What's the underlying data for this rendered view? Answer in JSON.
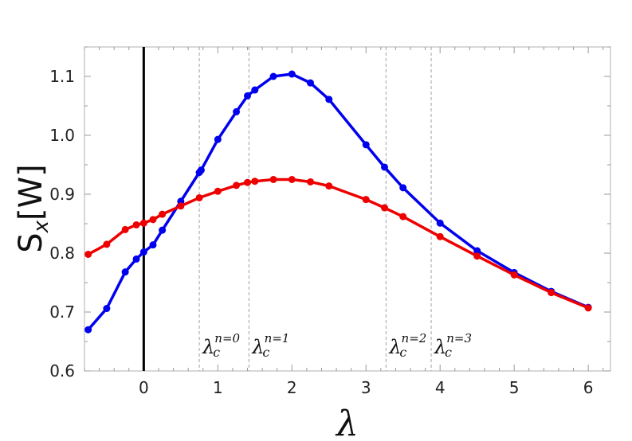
{
  "chart_data": {
    "type": "line",
    "xlabel": "λ",
    "ylabel": {
      "base": "S",
      "sub": "x",
      "unit": "[W]"
    },
    "xlim": [
      -0.8,
      6.3
    ],
    "ylim": [
      0.6,
      1.15
    ],
    "xticks": [
      0,
      1,
      2,
      3,
      4,
      5,
      6
    ],
    "yticks": [
      0.6,
      0.7,
      0.8,
      0.9,
      1.0,
      1.1
    ],
    "ytick_labels": [
      "0.6",
      "0.7",
      "0.8",
      "0.9",
      "1.0",
      "1.1"
    ],
    "grid": false,
    "vertical_line_at": 0,
    "series": [
      {
        "color": "#0000ee",
        "x": [
          -0.75,
          -0.5,
          -0.25,
          -0.1,
          0.0,
          0.125,
          0.25,
          0.5,
          0.75,
          0.775,
          1.0,
          1.25,
          1.4,
          1.5,
          1.75,
          2.0,
          2.25,
          2.5,
          3.0,
          3.25,
          3.5,
          4.0,
          4.5,
          5.0,
          5.5,
          6.0
        ],
        "y": [
          0.67,
          0.706,
          0.768,
          0.79,
          0.802,
          0.814,
          0.839,
          0.888,
          0.937,
          0.941,
          0.993,
          1.04,
          1.067,
          1.077,
          1.1,
          1.104,
          1.089,
          1.061,
          0.984,
          0.946,
          0.911,
          0.851,
          0.804,
          0.767,
          0.735,
          0.708
        ]
      },
      {
        "color": "#ee0000",
        "x": [
          -0.75,
          -0.5,
          -0.25,
          -0.1,
          0.0,
          0.125,
          0.25,
          0.5,
          0.75,
          1.0,
          1.25,
          1.4,
          1.5,
          1.75,
          2.0,
          2.25,
          2.5,
          3.0,
          3.25,
          3.5,
          4.0,
          4.5,
          5.0,
          5.5,
          6.0
        ],
        "y": [
          0.798,
          0.815,
          0.84,
          0.848,
          0.851,
          0.857,
          0.866,
          0.88,
          0.894,
          0.905,
          0.915,
          0.92,
          0.922,
          0.925,
          0.925,
          0.921,
          0.914,
          0.891,
          0.877,
          0.862,
          0.828,
          0.795,
          0.763,
          0.733,
          0.707
        ]
      }
    ],
    "annotations": [
      {
        "x": 0.75,
        "base": "λ",
        "sub": "c",
        "sup": "n=0"
      },
      {
        "x": 1.42,
        "base": "λ",
        "sub": "c",
        "sup": "n=1"
      },
      {
        "x": 3.27,
        "base": "λ",
        "sub": "c",
        "sup": "n=2"
      },
      {
        "x": 3.88,
        "base": "λ",
        "sub": "c",
        "sup": "n=3"
      }
    ]
  }
}
